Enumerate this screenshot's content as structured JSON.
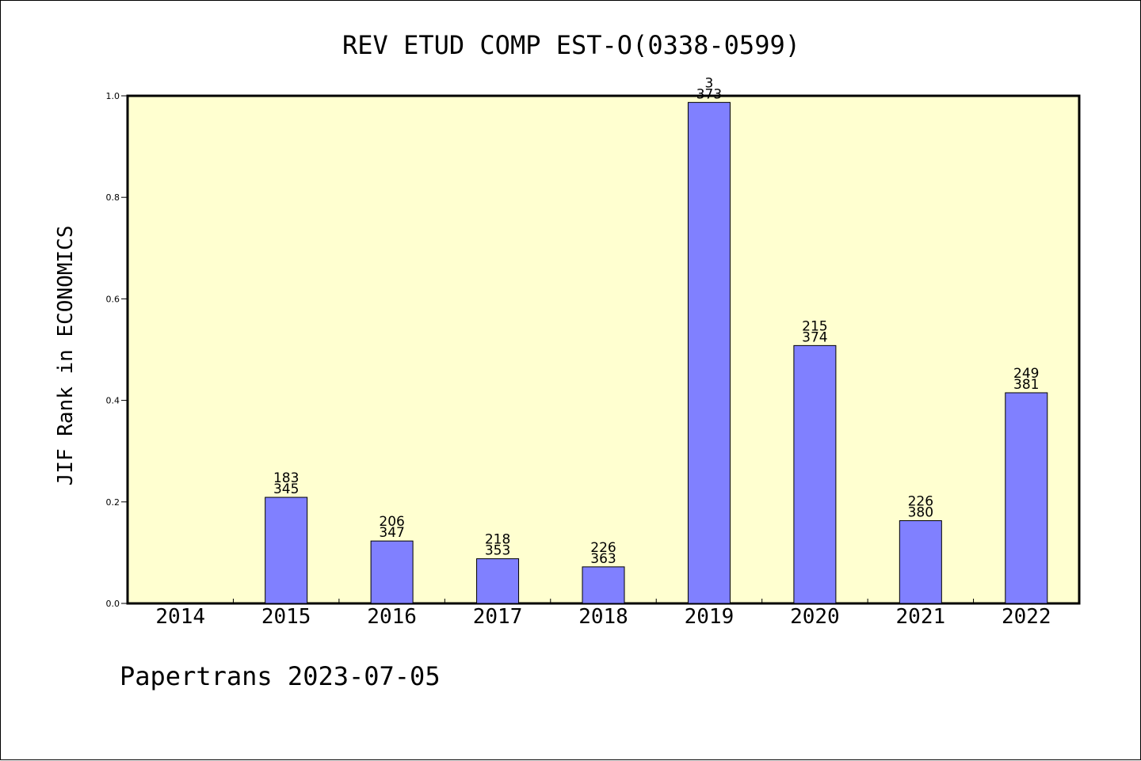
{
  "chart_data": {
    "type": "bar",
    "title": "REV ETUD COMP EST-O(0338-0599)",
    "ylabel": "JIF Rank in ECONOMICS",
    "xlabel": "",
    "footer": "Papertrans 2023-07-05",
    "ylim": [
      0,
      1.0
    ],
    "yticks": [
      "0.0",
      "0.2",
      "0.4",
      "0.6",
      "0.8",
      "1.0"
    ],
    "categories": [
      "2014",
      "2015",
      "2016",
      "2017",
      "2018",
      "2019",
      "2020",
      "2021",
      "2022"
    ],
    "values": [
      null,
      0.209,
      0.123,
      0.088,
      0.072,
      0.987,
      0.508,
      0.163,
      0.415
    ],
    "labels": [
      null,
      [
        "183",
        "345"
      ],
      [
        "206",
        "347"
      ],
      [
        "218",
        "353"
      ],
      [
        "226",
        "363"
      ],
      [
        "3",
        "373"
      ],
      [
        "215",
        "374"
      ],
      [
        "226",
        "380"
      ],
      [
        "249",
        "381"
      ]
    ],
    "grid": false,
    "colors": {
      "plot_background": "#FFFFD0",
      "bar_fill": "#8080FF",
      "bar_stroke": "#000000",
      "axis": "#000000"
    }
  }
}
